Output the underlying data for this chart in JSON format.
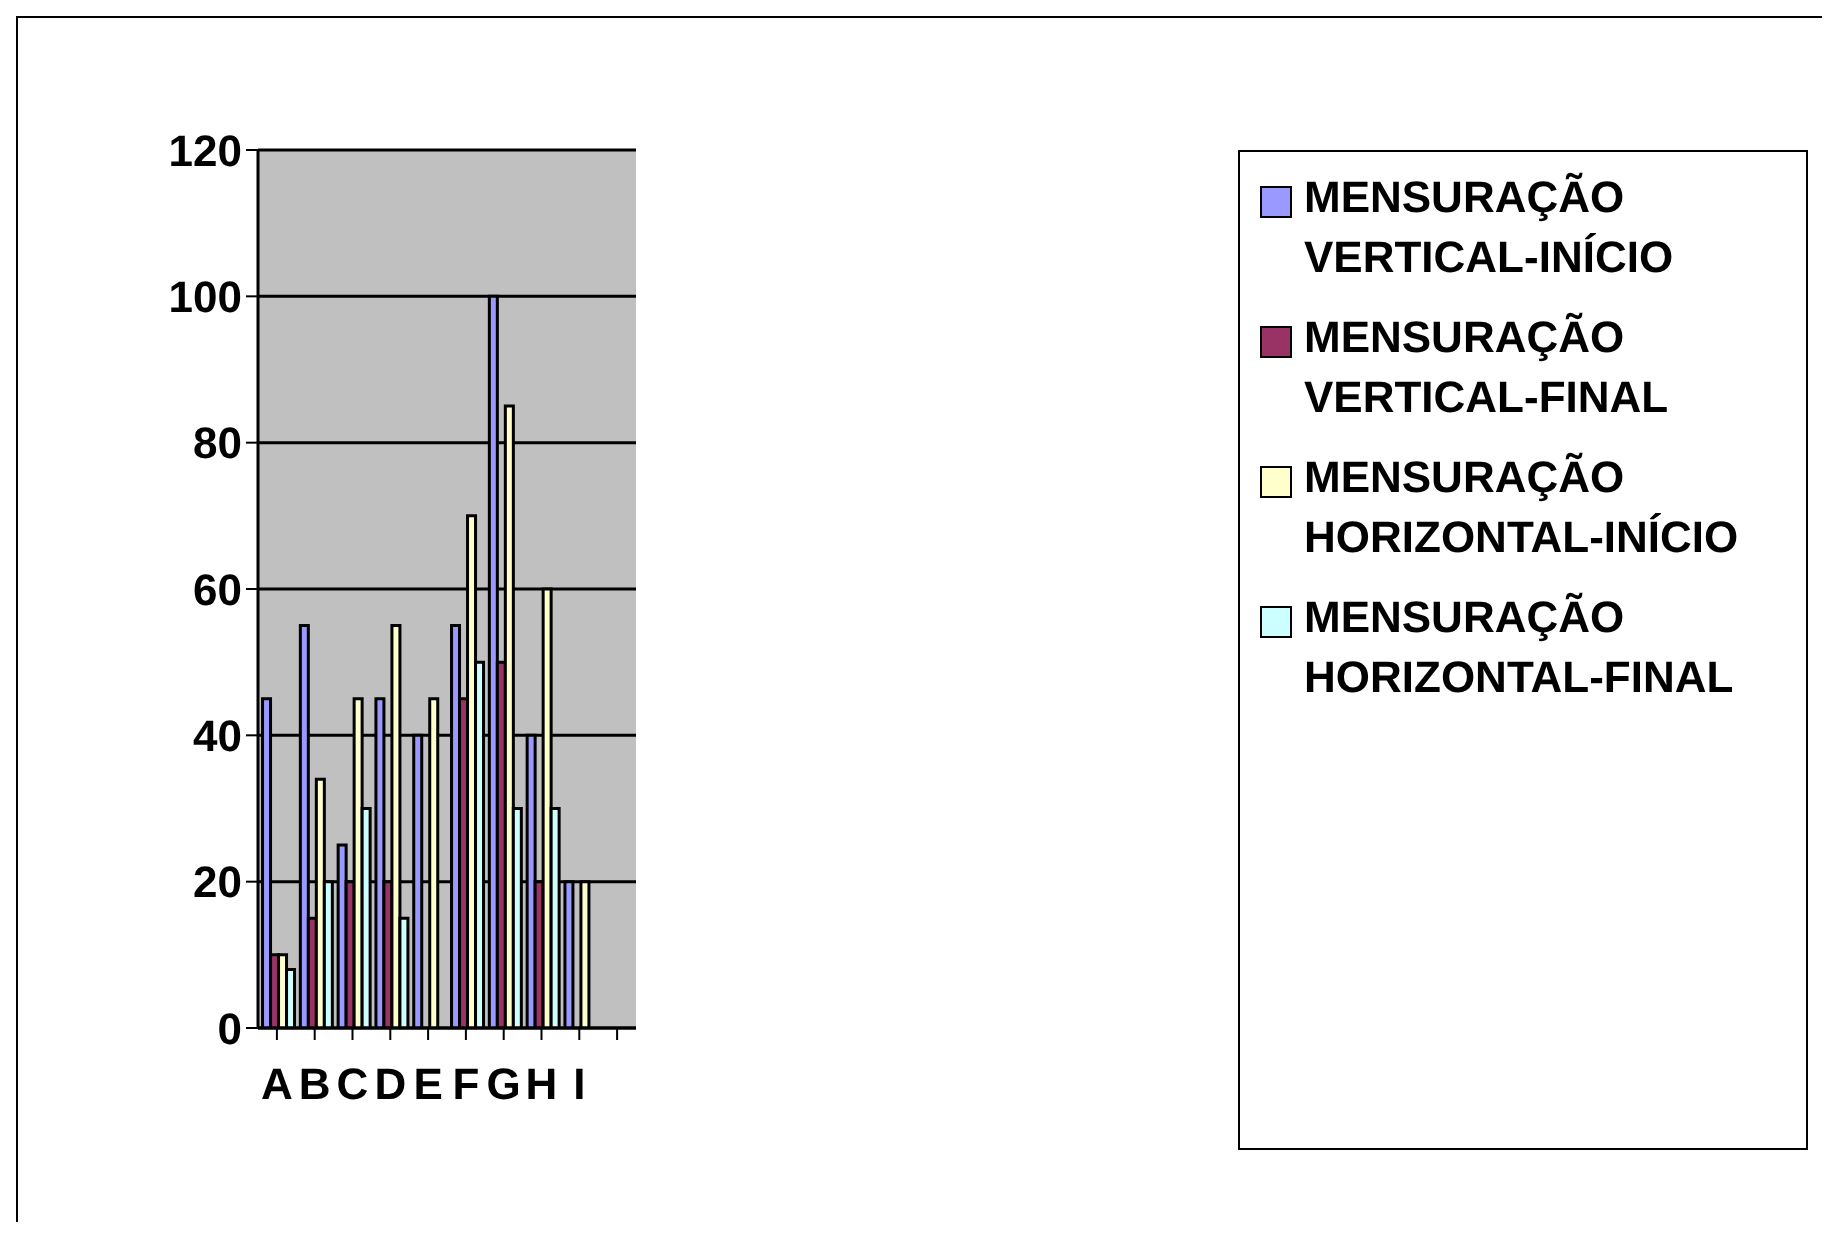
{
  "chart_data": {
    "type": "bar",
    "categories": [
      "A",
      "B",
      "C",
      "D",
      "E",
      "F",
      "G",
      "H",
      "I",
      null
    ],
    "series": [
      {
        "name": "MENSURAÇÃO VERTICAL-INÍCIO",
        "color": "#9999ff",
        "values": [
          45,
          55,
          25,
          45,
          40,
          55,
          100,
          40,
          20,
          null
        ]
      },
      {
        "name": "MENSURAÇÃO VERTICAL-FINAL",
        "color": "#993366",
        "values": [
          10,
          15,
          20,
          20,
          null,
          45,
          50,
          20,
          null,
          null
        ]
      },
      {
        "name": "MENSURAÇÃO HORIZONTAL-INÍCIO",
        "color": "#ffffcc",
        "values": [
          10,
          34,
          45,
          55,
          45,
          70,
          85,
          60,
          20,
          null
        ]
      },
      {
        "name": "MENSURAÇÃO HORIZONTAL-FINAL",
        "color": "#ccffff",
        "values": [
          8,
          20,
          30,
          15,
          null,
          50,
          30,
          30,
          null,
          null
        ]
      }
    ],
    "ylim": [
      0,
      120
    ],
    "yticks": [
      0,
      20,
      40,
      60,
      80,
      100,
      120
    ],
    "grid": "y",
    "legend": "right"
  }
}
